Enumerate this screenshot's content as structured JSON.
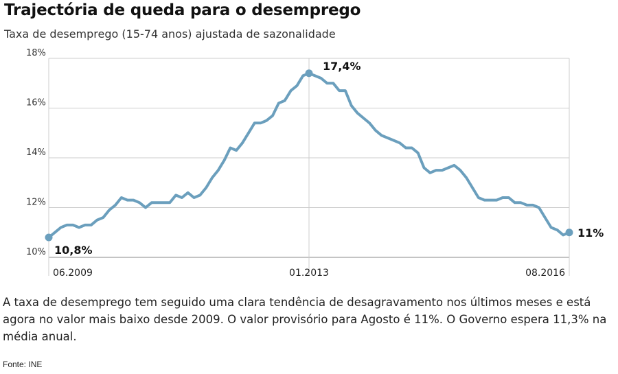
{
  "title": "Trajectória de queda para o desemprego",
  "subtitle": "Taxa de desemprego (15-74 anos) ajustada de sazonalidade",
  "description": "A taxa de desemprego tem seguido uma clara tendência de desagravamento nos últimos meses e está agora no valor mais baixo desde 2009. O valor provisório para Agosto é 11%. O Governo espera 11,3% na média anual.",
  "source": "Fonte: INE",
  "colors": {
    "line": "#6b9fbd",
    "grid": "#cccccc",
    "axis": "#888888"
  },
  "chart_data": {
    "type": "line",
    "title": "Trajectória de queda para o desemprego",
    "ylabel": "",
    "xlabel": "",
    "ylim": [
      10,
      18
    ],
    "yticks": [
      10,
      12,
      14,
      16,
      18
    ],
    "ytick_labels": [
      "10%",
      "12%",
      "14%",
      "16%",
      "18%"
    ],
    "xticks": [
      {
        "index": 0,
        "label": "06.2009"
      },
      {
        "index": 43,
        "label": "01.2013"
      },
      {
        "index": 86,
        "label": "08.2016"
      }
    ],
    "grid": true,
    "series": [
      {
        "values": [
          10.8,
          11.0,
          11.2,
          11.3,
          11.3,
          11.2,
          11.3,
          11.3,
          11.5,
          11.6,
          11.9,
          12.1,
          12.4,
          12.3,
          12.3,
          12.2,
          12.0,
          12.2,
          12.2,
          12.2,
          12.2,
          12.5,
          12.4,
          12.6,
          12.4,
          12.5,
          12.8,
          13.2,
          13.5,
          13.9,
          14.4,
          14.3,
          14.6,
          15.0,
          15.4,
          15.4,
          15.5,
          15.7,
          16.2,
          16.3,
          16.7,
          16.9,
          17.3,
          17.4,
          17.3,
          17.2,
          17.0,
          17.0,
          16.7,
          16.7,
          16.1,
          15.8,
          15.6,
          15.4,
          15.1,
          14.9,
          14.8,
          14.7,
          14.6,
          14.4,
          14.4,
          14.2,
          13.6,
          13.4,
          13.5,
          13.5,
          13.6,
          13.7,
          13.5,
          13.2,
          12.8,
          12.4,
          12.3,
          12.3,
          12.3,
          12.4,
          12.4,
          12.2,
          12.2,
          12.1,
          12.1,
          12.0,
          11.6,
          11.2,
          11.1,
          10.9,
          11.0
        ]
      }
    ],
    "annotations": [
      {
        "index": 0,
        "label": "10,8%"
      },
      {
        "index": 43,
        "label": "17,4%"
      },
      {
        "index": 86,
        "label": "11%"
      }
    ]
  }
}
